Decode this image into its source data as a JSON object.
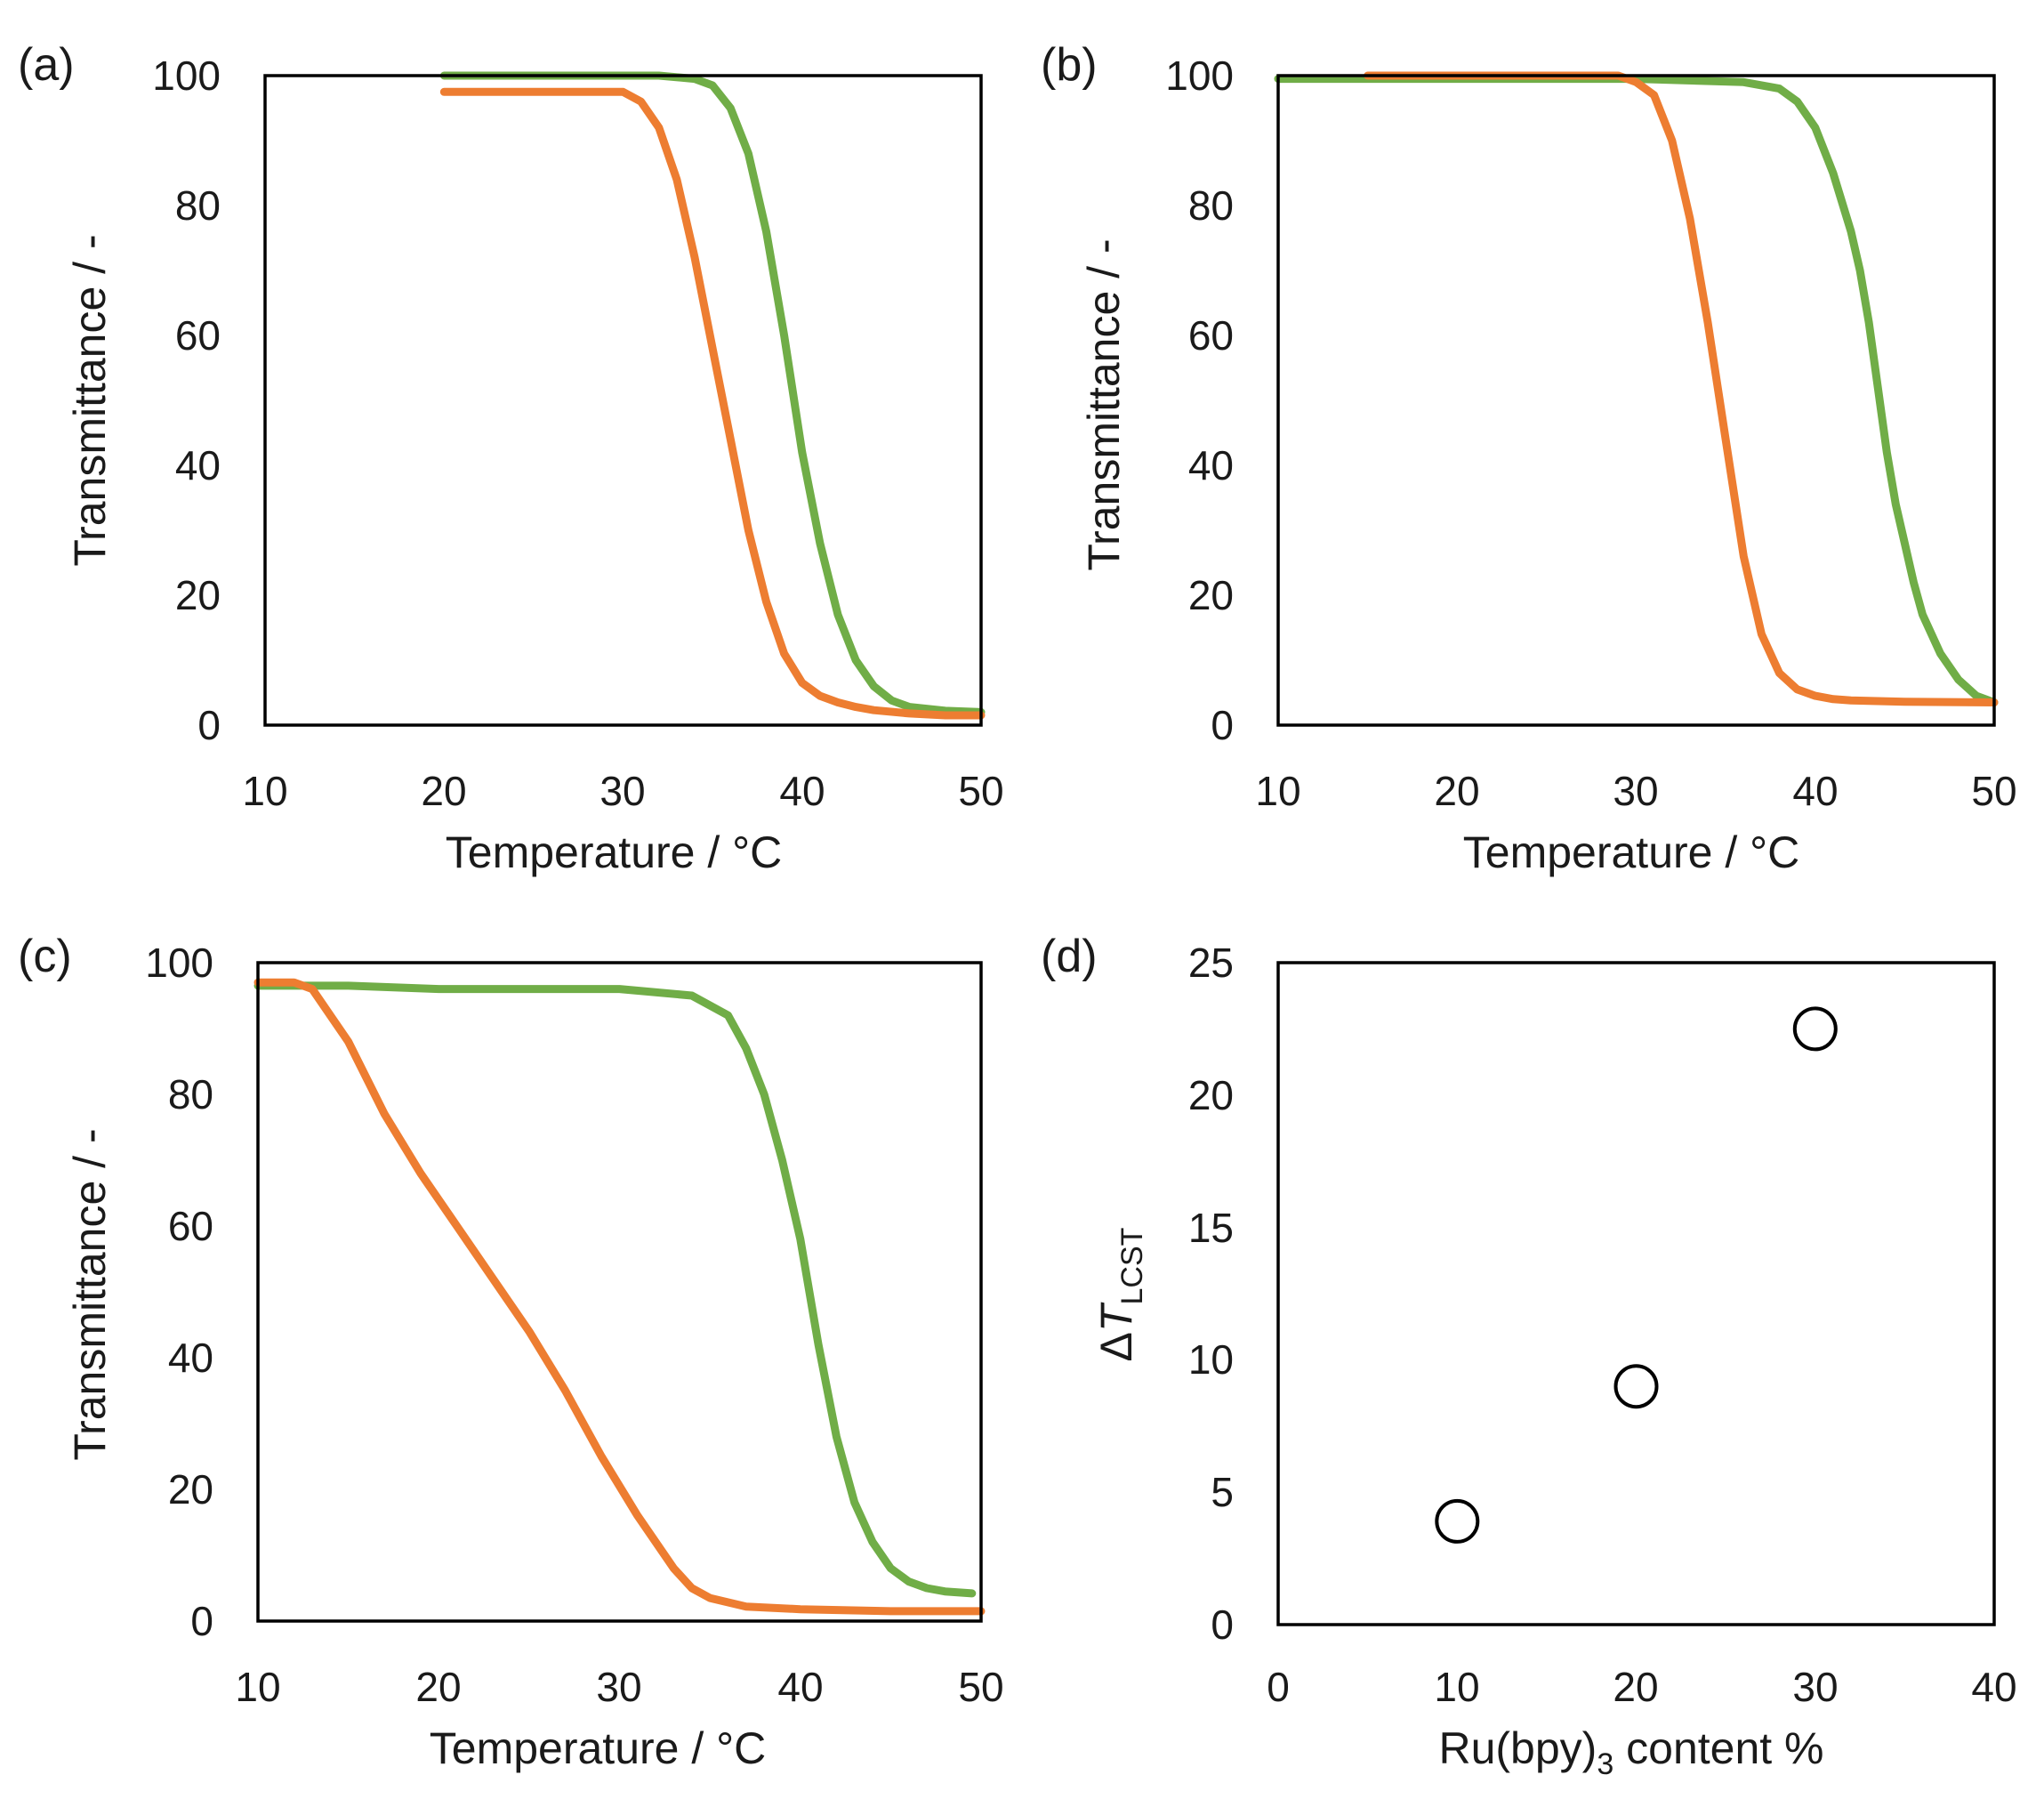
{
  "chart_data": [
    {
      "id": "a",
      "type": "line",
      "panel_label": "(a)",
      "xlabel": "Temperature / °C",
      "ylabel": "Transmittance / -",
      "xlim": [
        10,
        50
      ],
      "ylim": [
        0,
        100
      ],
      "xticks": [
        "10",
        "20",
        "30",
        "40",
        "50"
      ],
      "yticks": [
        "0",
        "20",
        "40",
        "60",
        "80",
        "100"
      ],
      "series": [
        {
          "name": "green",
          "color": "#70ad47",
          "x": [
            20,
            25,
            30,
            32,
            34,
            35,
            36,
            37,
            38,
            39,
            40,
            41,
            42,
            43,
            44,
            45,
            46,
            48,
            50
          ],
          "y": [
            100,
            100,
            100,
            100,
            99.5,
            98.5,
            95,
            88,
            76,
            60,
            42,
            28,
            17,
            10,
            6,
            3.8,
            2.8,
            2.2,
            2
          ]
        },
        {
          "name": "orange",
          "color": "#ed7d31",
          "x": [
            20,
            25,
            30,
            31,
            32,
            33,
            34,
            35,
            36,
            37,
            38,
            39,
            40,
            41,
            42,
            43,
            44,
            46,
            48,
            50
          ],
          "y": [
            97.5,
            97.5,
            97.5,
            96,
            92,
            84,
            72,
            58,
            44,
            30,
            19,
            11,
            6.5,
            4.5,
            3.5,
            2.8,
            2.3,
            1.8,
            1.5,
            1.5
          ]
        }
      ]
    },
    {
      "id": "b",
      "type": "line",
      "panel_label": "(b)",
      "xlabel": "Temperature / °C",
      "ylabel": "Transmittance / -",
      "xlim": [
        10,
        50
      ],
      "ylim": [
        0,
        100
      ],
      "xticks": [
        "10",
        "20",
        "30",
        "40",
        "50"
      ],
      "yticks": [
        "0",
        "20",
        "40",
        "60",
        "80",
        "100"
      ],
      "series": [
        {
          "name": "green",
          "color": "#70ad47",
          "x": [
            10,
            20,
            30,
            36,
            38,
            39,
            40,
            41,
            42,
            42.5,
            43,
            43.5,
            44,
            44.5,
            45,
            45.5,
            46,
            47,
            48,
            49,
            50
          ],
          "y": [
            99.5,
            99.5,
            99.5,
            99,
            98,
            96,
            92,
            85,
            76,
            70,
            62,
            52,
            42,
            34,
            28,
            22,
            17,
            11,
            7,
            4.5,
            3.5
          ]
        },
        {
          "name": "orange",
          "color": "#ed7d31",
          "x": [
            15,
            20,
            25,
            29,
            30,
            31,
            32,
            33,
            34,
            35,
            36,
            37,
            38,
            39,
            40,
            41,
            42,
            45,
            50
          ],
          "y": [
            100,
            100,
            100,
            100,
            99,
            97,
            90,
            78,
            62,
            44,
            26,
            14,
            8,
            5.5,
            4.5,
            4,
            3.8,
            3.6,
            3.5
          ]
        }
      ]
    },
    {
      "id": "c",
      "type": "line",
      "panel_label": "(c)",
      "xlabel": "Temperature / °C",
      "ylabel": "Transmittance / -",
      "xlim": [
        10,
        50
      ],
      "ylim": [
        0,
        100
      ],
      "xticks": [
        "10",
        "20",
        "30",
        "40",
        "50"
      ],
      "yticks": [
        "0",
        "20",
        "40",
        "60",
        "80",
        "100"
      ],
      "series": [
        {
          "name": "green",
          "color": "#70ad47",
          "x": [
            10,
            15,
            20,
            25,
            30,
            34,
            36,
            37,
            38,
            39,
            40,
            41,
            42,
            43,
            44,
            45,
            46,
            47,
            48,
            49.5
          ],
          "y": [
            96.5,
            96.5,
            96,
            96,
            96,
            95,
            92,
            87,
            80,
            70,
            58,
            42,
            28,
            18,
            12,
            8,
            6,
            5,
            4.5,
            4.2
          ]
        },
        {
          "name": "orange",
          "color": "#ed7d31",
          "x": [
            10,
            12,
            13,
            15,
            17,
            19,
            21,
            23,
            25,
            27,
            29,
            31,
            33,
            34,
            35,
            37,
            40,
            45,
            50
          ],
          "y": [
            97,
            97,
            96,
            88,
            77,
            68,
            60,
            52,
            44,
            35,
            25,
            16,
            8,
            5,
            3.5,
            2.2,
            1.8,
            1.5,
            1.5
          ]
        }
      ]
    },
    {
      "id": "d",
      "type": "scatter",
      "panel_label": "(d)",
      "xlabel_main": "Ru(bpy)",
      "xlabel_sub": "3",
      "xlabel_rest": " content %",
      "ylabel_delta": "Δ",
      "ylabel_italic": "T",
      "ylabel_sub": "LCST",
      "xlim": [
        0,
        40
      ],
      "ylim": [
        0,
        25
      ],
      "xticks": [
        "0",
        "10",
        "20",
        "30",
        "40"
      ],
      "yticks": [
        "0",
        "5",
        "10",
        "15",
        "20",
        "25"
      ],
      "series": [
        {
          "name": "points",
          "color": "#000000",
          "x": [
            10,
            20,
            30
          ],
          "y": [
            3.9,
            9.0,
            22.5
          ]
        }
      ]
    }
  ]
}
